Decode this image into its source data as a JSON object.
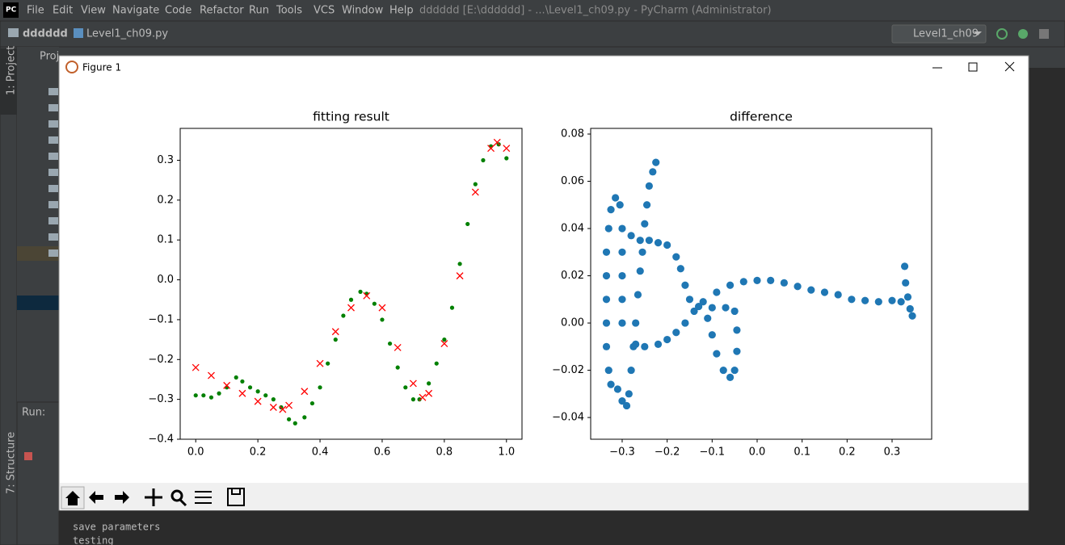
{
  "window": {
    "title": "dddddd [E:\\dddddd] - ...\\Level1_ch09.py - PyCharm (Administrator)",
    "menu": [
      "File",
      "Edit",
      "View",
      "Navigate",
      "Code",
      "Refactor",
      "Run",
      "Tools",
      "VCS",
      "Window",
      "Help"
    ],
    "breadcrumb": [
      "dddddd",
      "Level1_ch09.py"
    ],
    "run_config": "Level1_ch09",
    "side_tabs": [
      "1: Project",
      "7: Structure"
    ],
    "panel_title": "Proj",
    "run_label": "Run:"
  },
  "figure": {
    "title": "Figure 1"
  },
  "console": [
    "save parameters",
    "testing"
  ],
  "chart_data": [
    {
      "type": "scatter",
      "title": "fitting result",
      "xlim": [
        -0.05,
        1.05
      ],
      "ylim": [
        -0.4,
        0.38
      ],
      "xticks": [
        {
          "value": 0,
          "label": "0.0"
        },
        0.2,
        0.4,
        0.6,
        0.8,
        {
          "value": 1,
          "label": "1.0"
        }
      ],
      "yticks": [
        {
          "value": -0.4,
          "label": "−0.4"
        },
        {
          "value": -0.3,
          "label": "−0.3"
        },
        {
          "value": -0.2,
          "label": "−0.2"
        },
        {
          "value": -0.1,
          "label": "−0.1"
        },
        {
          "value": 0,
          "label": "0.0"
        },
        0.1,
        0.2,
        0.3
      ],
      "series": [
        {
          "marker": "o",
          "color": "#008000",
          "x": [
            0,
            0.025,
            0.05,
            0.075,
            0.1,
            0.13,
            0.15,
            0.175,
            0.2,
            0.225,
            0.25,
            0.275,
            0.3,
            0.32,
            0.35,
            0.375,
            0.4,
            0.425,
            0.45,
            0.475,
            0.5,
            0.53,
            0.55,
            0.575,
            0.6,
            0.625,
            0.65,
            0.675,
            0.7,
            0.72,
            0.75,
            0.775,
            0.8,
            0.825,
            0.85,
            0.875,
            0.9,
            0.925,
            0.95,
            0.975,
            1.0
          ],
          "values": [
            -0.29,
            -0.29,
            -0.295,
            -0.285,
            -0.27,
            -0.245,
            -0.255,
            -0.27,
            -0.28,
            -0.29,
            -0.3,
            -0.32,
            -0.35,
            -0.36,
            -0.345,
            -0.31,
            -0.27,
            -0.21,
            -0.15,
            -0.09,
            -0.05,
            -0.03,
            -0.035,
            -0.06,
            -0.1,
            -0.16,
            -0.22,
            -0.27,
            -0.3,
            -0.3,
            -0.26,
            -0.21,
            -0.15,
            -0.07,
            0.04,
            0.14,
            0.24,
            0.3,
            0.335,
            0.34,
            0.305
          ]
        },
        {
          "marker": "x",
          "color": "#ff0000",
          "x": [
            0,
            0.05,
            0.1,
            0.15,
            0.2,
            0.25,
            0.28,
            0.3,
            0.35,
            0.4,
            0.45,
            0.5,
            0.55,
            0.6,
            0.65,
            0.7,
            0.73,
            0.75,
            0.8,
            0.85,
            0.9,
            0.95,
            0.97,
            1.0
          ],
          "values": [
            -0.22,
            -0.24,
            -0.265,
            -0.285,
            -0.305,
            -0.32,
            -0.325,
            -0.315,
            -0.28,
            -0.21,
            -0.13,
            -0.07,
            -0.04,
            -0.07,
            -0.17,
            -0.26,
            -0.295,
            -0.285,
            -0.16,
            0.01,
            0.22,
            0.33,
            0.345,
            0.33
          ]
        }
      ]
    },
    {
      "type": "scatter",
      "title": "difference",
      "xlim": [
        -0.37,
        0.388
      ],
      "ylim": [
        -0.0492,
        0.0824
      ],
      "xticks": [
        {
          "value": -0.3,
          "label": "−0.3"
        },
        {
          "value": -0.2,
          "label": "−0.2"
        },
        {
          "value": -0.1,
          "label": "−0.1"
        },
        {
          "value": 0,
          "label": "0.0"
        },
        0.1,
        0.2,
        0.3
      ],
      "yticks": [
        {
          "value": -0.04,
          "label": "−0.04"
        },
        {
          "value": -0.02,
          "label": "−0.02"
        },
        {
          "value": 0,
          "label": "0.00"
        },
        0.02,
        0.04,
        0.06,
        0.08
      ],
      "series": [
        {
          "marker": "o-large",
          "color": "#1f77b4",
          "x": [
            0.345,
            0.34,
            0.335,
            0.33,
            0.328,
            0.32,
            0.3,
            0.27,
            0.24,
            0.21,
            0.18,
            0.15,
            0.12,
            0.09,
            0.06,
            0.03,
            0.0,
            -0.03,
            -0.06,
            -0.09,
            -0.12,
            -0.14,
            -0.16,
            -0.18,
            -0.2,
            -0.22,
            -0.25,
            -0.27,
            -0.3,
            -0.3,
            -0.3,
            -0.3,
            -0.3,
            -0.305,
            -0.315,
            -0.325,
            -0.33,
            -0.335,
            -0.335,
            -0.335,
            -0.335,
            -0.335,
            -0.33,
            -0.325,
            -0.31,
            -0.3,
            -0.29,
            -0.285,
            -0.28,
            -0.275,
            -0.27,
            -0.265,
            -0.26,
            -0.255,
            -0.25,
            -0.245,
            -0.24,
            -0.232,
            -0.225,
            -0.28,
            -0.26,
            -0.24,
            -0.22,
            -0.2,
            -0.18,
            -0.17,
            -0.16,
            -0.15,
            -0.13,
            -0.1,
            -0.07,
            -0.05,
            -0.045,
            -0.045,
            -0.05,
            -0.06,
            -0.075,
            -0.09,
            -0.1,
            -0.11
          ],
          "values": [
            0.003,
            0.006,
            0.011,
            0.017,
            0.024,
            0.009,
            0.0095,
            0.009,
            0.0095,
            0.01,
            0.012,
            0.013,
            0.014,
            0.0155,
            0.017,
            0.018,
            0.018,
            0.0175,
            0.016,
            0.013,
            0.009,
            0.005,
            0.0,
            -0.004,
            -0.007,
            -0.009,
            -0.01,
            -0.009,
            0.0,
            0.01,
            0.02,
            0.03,
            0.04,
            0.05,
            0.053,
            0.048,
            0.04,
            0.03,
            0.02,
            0.01,
            0.0,
            -0.01,
            -0.02,
            -0.026,
            -0.028,
            -0.033,
            -0.035,
            -0.03,
            -0.02,
            -0.01,
            0.0,
            0.012,
            0.022,
            0.03,
            0.042,
            0.05,
            0.058,
            0.064,
            0.068,
            0.037,
            0.035,
            0.035,
            0.034,
            0.033,
            0.028,
            0.023,
            0.016,
            0.01,
            0.007,
            0.0065,
            0.0065,
            0.005,
            -0.003,
            -0.012,
            -0.02,
            -0.023,
            -0.02,
            -0.013,
            -0.005,
            0.002
          ]
        }
      ]
    }
  ]
}
